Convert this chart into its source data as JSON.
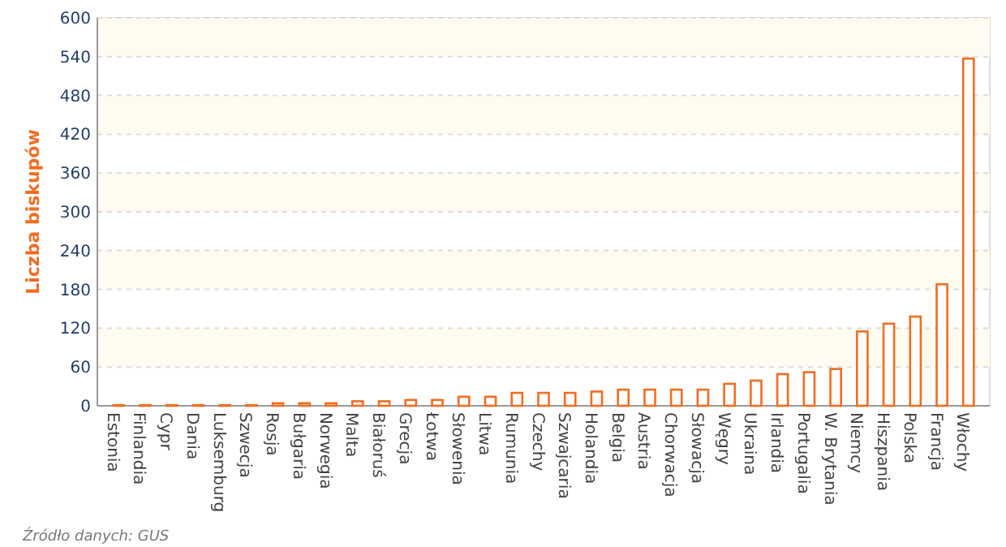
{
  "chart_data": {
    "type": "bar",
    "ylabel": "Liczba biskupów",
    "categories": [
      "Estonia",
      "Finlandia",
      "Cypr",
      "Dania",
      "Luksemburg",
      "Szwecja",
      "Rosja",
      "Bułgaria",
      "Norwegia",
      "Malta",
      "Białoruś",
      "Grecja",
      "Łotwa",
      "Słowenia",
      "Litwa",
      "Rumunia",
      "Czechy",
      "Szwajcaria",
      "Holandia",
      "Belgia",
      "Austria",
      "Chorwacja",
      "Słowacja",
      "Węgry",
      "Ukraina",
      "Irlandia",
      "Portugalia",
      "W. Brytania",
      "Niemcy",
      "Hiszpania",
      "Polska",
      "Francja",
      "Włochy"
    ],
    "values": [
      1,
      1,
      1,
      1,
      1,
      1,
      4,
      4,
      4,
      7,
      7,
      9,
      9,
      14,
      14,
      20,
      20,
      20,
      22,
      25,
      25,
      25,
      25,
      34,
      39,
      49,
      52,
      57,
      115,
      127,
      138,
      188,
      537
    ],
    "color": "#f26d21",
    "ylim": [
      0,
      600
    ],
    "yticks": [
      0,
      60,
      120,
      180,
      240,
      300,
      360,
      420,
      480,
      540,
      600
    ],
    "grid": "y",
    "annotations": [
      "Źródło danych: GUS"
    ]
  }
}
